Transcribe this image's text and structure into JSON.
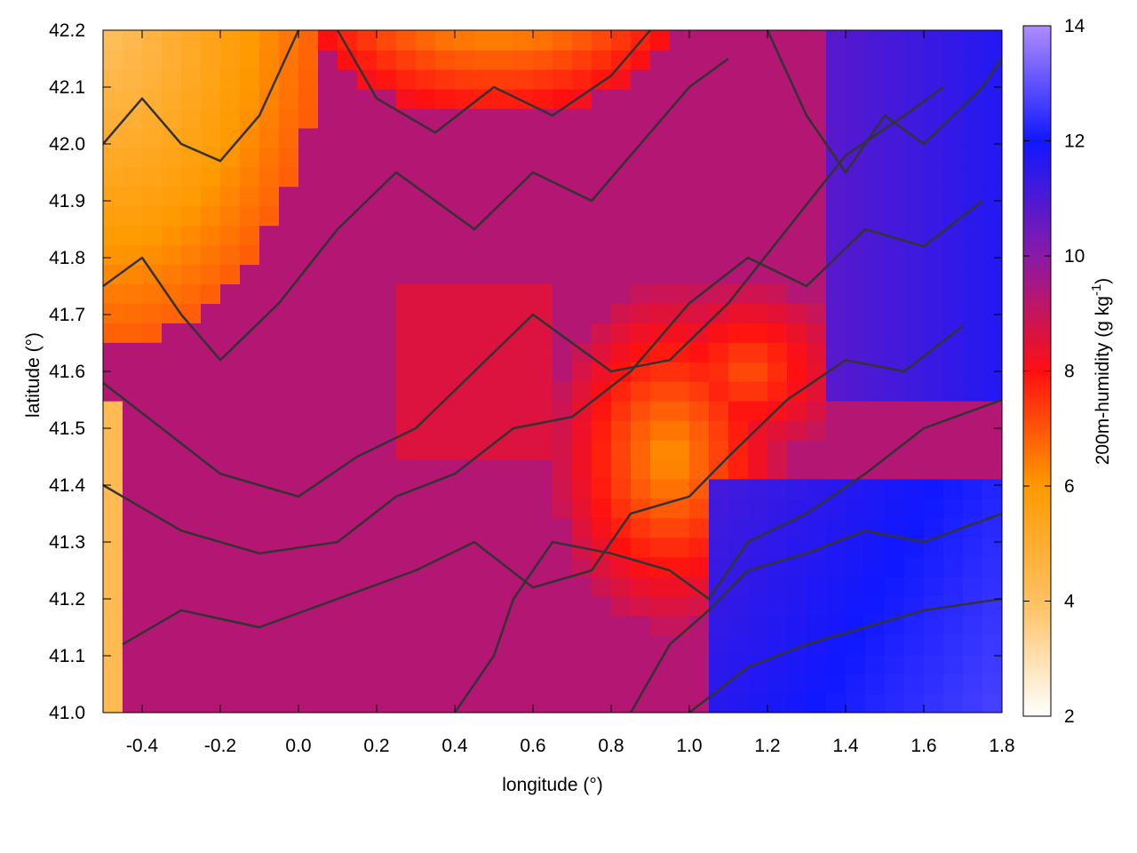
{
  "chart_data": {
    "type": "heatmap",
    "title": "",
    "xlabel": "longitude (°)",
    "ylabel": "latitude (°)",
    "colorbar_label": "200m-humidity (g kg",
    "colorbar_label_sup": "-1",
    "colorbar_label_close": ")",
    "xlim": [
      -0.5,
      1.8
    ],
    "ylim": [
      41.0,
      42.2
    ],
    "zlim": [
      2,
      14
    ],
    "x_ticks": [
      -0.4,
      -0.2,
      0.0,
      0.2,
      0.4,
      0.6,
      0.8,
      1.0,
      1.2,
      1.4,
      1.6,
      1.8
    ],
    "x_tick_labels": [
      "-0.4",
      "-0.2",
      "0.0",
      "0.2",
      "0.4",
      "0.6",
      "0.8",
      "1.0",
      "1.2",
      "1.4",
      "1.6",
      "1.8"
    ],
    "y_ticks": [
      41.0,
      41.1,
      41.2,
      41.3,
      41.4,
      41.5,
      41.6,
      41.7,
      41.8,
      41.9,
      42.0,
      42.1,
      42.2
    ],
    "y_tick_labels": [
      "41.0",
      "41.1",
      "41.2",
      "41.3",
      "41.4",
      "41.5",
      "41.6",
      "41.7",
      "41.8",
      "41.9",
      "42.0",
      "42.1",
      "42.2"
    ],
    "colorbar_ticks": [
      2,
      4,
      6,
      8,
      10,
      12,
      14
    ],
    "colorbar_tick_labels": [
      "2",
      "4",
      "6",
      "8",
      "10",
      "12",
      "14"
    ],
    "colormap": [
      {
        "value": 2,
        "color": "#ffffff"
      },
      {
        "value": 4,
        "color": "#ffc060"
      },
      {
        "value": 6,
        "color": "#ff9a00"
      },
      {
        "value": 8,
        "color": "#ff1010"
      },
      {
        "value": 10,
        "color": "#8a1aa8"
      },
      {
        "value": 12,
        "color": "#1018ff"
      },
      {
        "value": 14,
        "color": "#b08cff"
      }
    ],
    "grid": false,
    "contours": true,
    "contour_color": "#333333"
  }
}
